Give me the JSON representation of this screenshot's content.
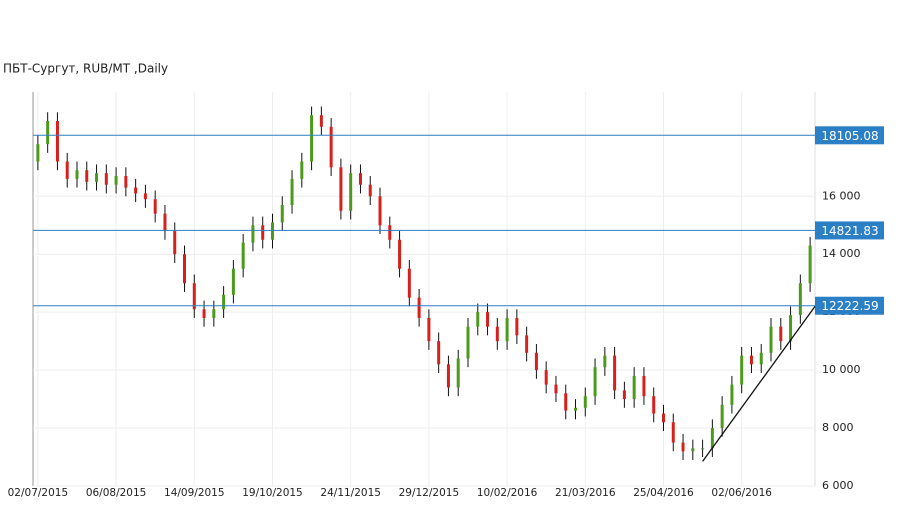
{
  "chart_data": {
    "type": "candlestick",
    "title": "ПБТ-Сургут,  RUB/MT ,Daily",
    "categories": [
      "02/07/2015",
      null,
      null,
      null,
      null,
      null,
      null,
      null,
      "06/08/2015",
      null,
      null,
      null,
      null,
      null,
      null,
      null,
      "14/09/2015",
      null,
      null,
      null,
      null,
      null,
      null,
      null,
      "19/10/2015",
      null,
      null,
      null,
      null,
      null,
      null,
      null,
      "24/11/2015",
      null,
      null,
      null,
      null,
      null,
      null,
      null,
      "29/12/2015",
      null,
      null,
      null,
      null,
      null,
      null,
      null,
      "10/02/2016",
      null,
      null,
      null,
      null,
      null,
      null,
      null,
      "21/03/2016",
      null,
      null,
      null,
      null,
      null,
      null,
      null,
      "25/04/2016",
      null,
      null,
      null,
      null,
      null,
      null,
      null,
      "02/06/2016",
      null,
      null,
      null,
      null,
      null,
      null,
      null
    ],
    "open": [
      17200,
      17800,
      18600,
      17200,
      16600,
      16900,
      16500,
      16800,
      16400,
      16700,
      16300,
      16100,
      15900,
      15400,
      14800,
      14000,
      13000,
      12100,
      11800,
      12100,
      12600,
      13500,
      14400,
      15000,
      14500,
      15100,
      15700,
      16600,
      17200,
      18800,
      18400,
      17000,
      15500,
      16800,
      16400,
      16000,
      15000,
      14500,
      13500,
      12500,
      11800,
      11000,
      10200,
      9400,
      10400,
      11500,
      12000,
      11500,
      11000,
      11800,
      11200,
      10600,
      10000,
      9500,
      9200,
      8600,
      8700,
      9100,
      10100,
      10500,
      9300,
      9000,
      9800,
      9100,
      8500,
      8200,
      7500,
      7200,
      7300,
      7300,
      8000,
      8800,
      9500,
      10500,
      10200,
      10600,
      11500,
      11000,
      11900,
      13000
    ],
    "high": [
      18100,
      18900,
      18900,
      17500,
      17200,
      17200,
      17100,
      17100,
      17000,
      17000,
      16600,
      16400,
      16200,
      15700,
      15100,
      14300,
      13300,
      12400,
      12400,
      12900,
      13800,
      14700,
      15300,
      15300,
      15400,
      16000,
      16900,
      17500,
      19100,
      19100,
      18700,
      17300,
      17100,
      17100,
      16700,
      16300,
      15300,
      14800,
      13800,
      12800,
      12100,
      11300,
      10500,
      10700,
      11800,
      12300,
      12300,
      11800,
      12100,
      12100,
      11500,
      10900,
      10300,
      9800,
      9500,
      9000,
      9400,
      10400,
      10800,
      10800,
      9600,
      10100,
      10100,
      9400,
      8800,
      8500,
      7800,
      7600,
      7600,
      8300,
      9100,
      9800,
      10800,
      10800,
      10900,
      11800,
      11800,
      12200,
      13300,
      14600
    ],
    "low": [
      16900,
      17500,
      16900,
      16300,
      16300,
      16200,
      16200,
      16100,
      16100,
      16000,
      15800,
      15600,
      15100,
      14500,
      13700,
      12700,
      11800,
      11500,
      11500,
      11800,
      12300,
      13200,
      14100,
      14200,
      14200,
      14800,
      15400,
      16300,
      16900,
      18100,
      16700,
      15200,
      15200,
      16100,
      15700,
      14700,
      14200,
      13200,
      12200,
      11500,
      10700,
      9900,
      9100,
      9100,
      10100,
      11200,
      11200,
      10700,
      10700,
      10900,
      10300,
      9700,
      9200,
      8900,
      8300,
      8300,
      8400,
      8800,
      9800,
      9000,
      8700,
      8700,
      8800,
      8200,
      7900,
      7200,
      6900,
      6900,
      7000,
      7000,
      7700,
      8500,
      9200,
      9900,
      9900,
      10300,
      10700,
      10700,
      11600,
      12700
    ],
    "close": [
      17800,
      18600,
      17200,
      16600,
      16900,
      16500,
      16800,
      16400,
      16700,
      16300,
      16100,
      15900,
      15400,
      14800,
      14000,
      13000,
      12100,
      11800,
      12100,
      12600,
      13500,
      14400,
      15000,
      14500,
      15100,
      15700,
      16600,
      17200,
      18800,
      18400,
      17000,
      15500,
      16800,
      16400,
      16000,
      15000,
      14500,
      13500,
      12500,
      11800,
      11000,
      10200,
      9400,
      10400,
      11500,
      12000,
      11500,
      11000,
      11800,
      11200,
      10600,
      10000,
      9500,
      9200,
      8600,
      8700,
      9100,
      10100,
      10500,
      9300,
      9000,
      9800,
      9100,
      8500,
      8200,
      7500,
      7200,
      7300,
      7300,
      8000,
      8800,
      9500,
      10500,
      10200,
      10600,
      11500,
      11000,
      11900,
      13000,
      14300
    ],
    "up_color": "#4c9a1c",
    "down_color": "#d6201c",
    "ylim": [
      6000,
      19600
    ],
    "yticks": [
      {
        "value": 6000,
        "label": "6 000"
      },
      {
        "value": 8000,
        "label": "8 000"
      },
      {
        "value": 10000,
        "label": "10 000"
      },
      {
        "value": 12000,
        "label": "12 000"
      },
      {
        "value": 14000,
        "label": "14 000"
      },
      {
        "value": 16000,
        "label": "16 000"
      }
    ],
    "grid": true,
    "levels": [
      18105.08,
      14821.83,
      12222.59
    ],
    "level_color": "#2b7fc4",
    "trendline": {
      "x": [
        68,
        79.5
      ],
      "y": [
        6850,
        12200
      ]
    }
  }
}
